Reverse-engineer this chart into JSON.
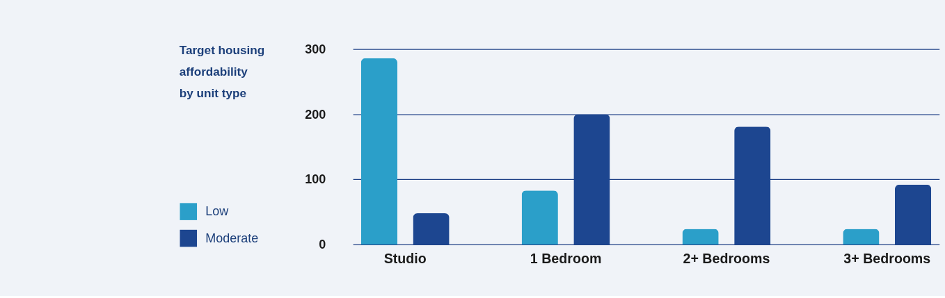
{
  "chart_data": {
    "type": "bar",
    "title": "Target housing affordability by unit type",
    "categories": [
      "Studio",
      "1 Bedroom",
      "2+ Bedrooms",
      "3+ Bedrooms"
    ],
    "series": [
      {
        "name": "Low",
        "color": "#2b9fc9",
        "values": [
          286,
          83,
          24,
          24
        ]
      },
      {
        "name": "Moderate",
        "color": "#1d4690",
        "values": [
          48,
          200,
          181,
          92
        ]
      }
    ],
    "ylim": [
      0,
      300
    ],
    "yticks": [
      0,
      100,
      200,
      300
    ],
    "grid": "y",
    "legend": "bottom left"
  }
}
